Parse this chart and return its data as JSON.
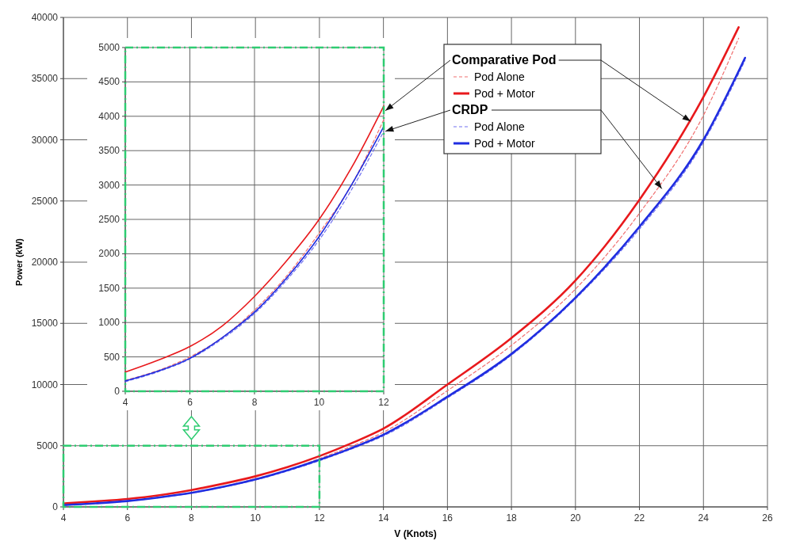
{
  "chart_data": [
    {
      "type": "line",
      "xlabel": "V (Knots)",
      "ylabel": "Power (kW)",
      "xlim": [
        4,
        26
      ],
      "xticks": [
        4,
        6,
        8,
        10,
        12,
        14,
        16,
        18,
        20,
        22,
        24,
        26
      ],
      "ylim": [
        0,
        40000
      ],
      "yticks": [
        0,
        5000,
        10000,
        15000,
        20000,
        25000,
        30000,
        35000,
        40000
      ],
      "grid": true,
      "legend": "top right",
      "annotations": [
        {
          "text": "Comparative Pod",
          "x": 23.6,
          "y": 31500
        },
        {
          "text": "CRDP",
          "x": 22.7,
          "y": 26000
        }
      ],
      "series": [
        {
          "name": "Pod Alone",
          "color": "#f07070",
          "line_style": "dashed",
          "x": [
            4,
            5,
            6,
            7,
            8,
            9,
            10,
            11,
            12,
            13,
            14,
            16,
            18,
            20,
            22,
            24,
            25.1
          ],
          "values": [
            160,
            300,
            500,
            780,
            1180,
            1680,
            2300,
            3000,
            3950,
            4950,
            6100,
            9500,
            13200,
            17800,
            24000,
            32000,
            38300
          ]
        },
        {
          "name": "Pod + Motor",
          "color": "#e8191c",
          "line_style": "solid",
          "x": [
            4,
            5,
            6,
            7,
            8,
            9,
            10,
            11,
            12,
            13,
            14,
            16,
            18,
            20,
            22,
            24,
            25.1
          ],
          "values": [
            280,
            450,
            650,
            950,
            1380,
            1900,
            2500,
            3250,
            4150,
            5200,
            6400,
            10000,
            13800,
            18500,
            25100,
            33500,
            39200
          ]
        },
        {
          "name": "Pod Alone",
          "color": "#7070f0",
          "line_style": "dashed",
          "x": [
            4,
            5,
            6,
            7,
            8,
            9,
            10,
            11,
            12,
            13,
            14,
            16,
            18,
            20,
            22,
            24,
            25.3
          ],
          "values": [
            140,
            280,
            470,
            760,
            1130,
            1620,
            2200,
            2930,
            3780,
            4730,
            5800,
            8900,
            12400,
            17000,
            22700,
            29800,
            36500
          ]
        },
        {
          "name": "Pod + Motor",
          "color": "#1f2de0",
          "line_style": "solid",
          "x": [
            4,
            5,
            6,
            7,
            8,
            9,
            10,
            11,
            12,
            13,
            14,
            16,
            18,
            20,
            22,
            24,
            25.3
          ],
          "values": [
            150,
            290,
            480,
            780,
            1150,
            1650,
            2250,
            3000,
            3850,
            4800,
            5900,
            9000,
            12500,
            17100,
            22900,
            30000,
            36700
          ]
        }
      ]
    },
    {
      "type": "line",
      "xlim": [
        4,
        12
      ],
      "xticks": [
        4,
        6,
        8,
        10,
        12
      ],
      "ylim": [
        0,
        5000
      ],
      "yticks": [
        0,
        500,
        1000,
        1500,
        2000,
        2500,
        3000,
        3500,
        4000,
        4500,
        5000
      ],
      "grid": true,
      "x": [
        4,
        5,
        6,
        7,
        8,
        9,
        10,
        11,
        12
      ],
      "series": [
        {
          "color": "#f07070",
          "line_style": "dashed",
          "values": [
            160,
            300,
            500,
            780,
            1180,
            1680,
            2300,
            3000,
            3950
          ]
        },
        {
          "color": "#e8191c",
          "line_style": "solid",
          "values": [
            280,
            450,
            650,
            950,
            1380,
            1900,
            2500,
            3250,
            4150
          ]
        },
        {
          "color": "#7070f0",
          "line_style": "dashed",
          "values": [
            140,
            280,
            470,
            760,
            1130,
            1620,
            2200,
            2930,
            3780
          ]
        },
        {
          "color": "#1f2de0",
          "line_style": "solid",
          "values": [
            150,
            290,
            480,
            780,
            1150,
            1650,
            2250,
            3000,
            3850
          ]
        }
      ]
    }
  ]
}
